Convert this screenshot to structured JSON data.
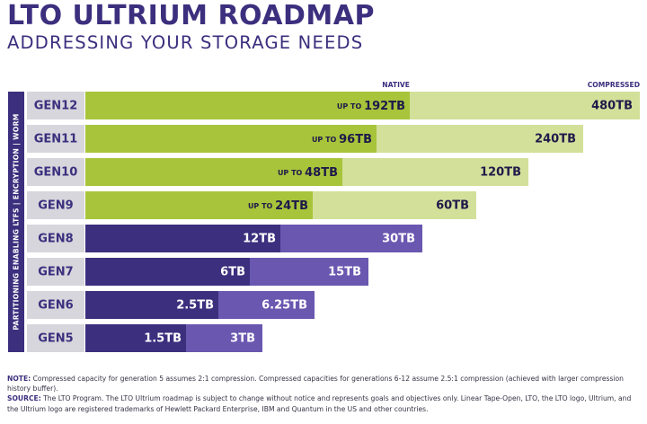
{
  "title": "LTO ULTRIUM ROADMAP",
  "subtitle": "ADDRESSING YOUR STORAGE NEEDS",
  "colors": {
    "title": "#3b2f7e",
    "native_lto9_12": "#a8c43a",
    "compressed_lto9_12": "#d2e09a",
    "native_lto5_8": "#3b2f7e",
    "compressed_lto5_8": "#6a57b0",
    "label_bg": "#d6d6dc",
    "side_band": "#3b2f7e"
  },
  "chart_data": {
    "type": "bar",
    "orientation": "horizontal",
    "stacked": true,
    "column_headers": [
      "NATIVE",
      "COMPRESSED"
    ],
    "side_label": "PARTITIONING ENABLING LTFS  |  ENCRYPTION  |  WORM",
    "categories": [
      "GEN12",
      "GEN11",
      "GEN10",
      "GEN9",
      "GEN8",
      "GEN7",
      "GEN6",
      "GEN5"
    ],
    "series": [
      {
        "name": "NATIVE",
        "values": [
          192,
          96,
          48,
          24,
          12,
          6,
          2.5,
          1.5
        ]
      },
      {
        "name": "COMPRESSED",
        "values": [
          480,
          240,
          120,
          60,
          30,
          15,
          6.25,
          3
        ]
      }
    ],
    "native_labels": [
      "UP TO 192TB",
      "UP TO 96TB",
      "UP TO 48TB",
      "UP TO 24TB",
      "12TB",
      "6TB",
      "2.5TB",
      "1.5TB"
    ],
    "compressed_labels": [
      "480TB",
      "240TB",
      "120TB",
      "60TB",
      "30TB",
      "15TB",
      "6.25TB",
      "3TB"
    ]
  },
  "notes": {
    "note_label": "NOTE:",
    "note_text": " Compressed capacity for generation 5 assumes 2:1 compression. Compressed capacities for generations 6-12 assume 2.5:1 compression (achieved with larger compression history buffer).",
    "source_label": "SOURCE:",
    "source_text": " The LTO Program. The LTO Ultrium roadmap is subject to change without notice and represents goals and objectives only. Linear Tape-Open, LTO, the LTO logo, Ultrium, and the Ultrium logo are registered trademarks of Hewlett Packard Enterprise, IBM and Quantum in the US and other countries."
  }
}
